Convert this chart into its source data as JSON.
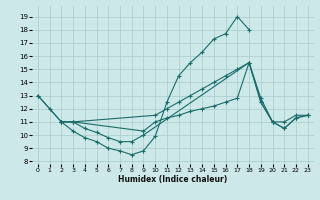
{
  "xlabel": "Humidex (Indice chaleur)",
  "bg_color": "#cce8e8",
  "grid_color": "#aacccc",
  "line_color": "#1a6b6b",
  "xlim": [
    -0.5,
    23.5
  ],
  "ylim": [
    7.8,
    19.8
  ],
  "yticks": [
    8,
    9,
    10,
    11,
    12,
    13,
    14,
    15,
    16,
    17,
    18,
    19
  ],
  "xticks": [
    0,
    1,
    2,
    3,
    4,
    5,
    6,
    7,
    8,
    9,
    10,
    11,
    12,
    13,
    14,
    15,
    16,
    17,
    18,
    19,
    20,
    21,
    22,
    23
  ],
  "lines": [
    {
      "x": [
        0,
        1,
        2,
        3,
        4,
        5,
        6,
        7,
        8,
        9,
        10,
        11,
        12,
        13,
        14,
        15,
        16,
        17,
        18
      ],
      "y": [
        13,
        12,
        11,
        10.3,
        9.8,
        9.5,
        9.0,
        8.8,
        8.5,
        8.8,
        9.9,
        12.5,
        14.5,
        15.5,
        16.3,
        17.3,
        17.7,
        19.0,
        18.0
      ]
    },
    {
      "x": [
        0,
        2,
        3,
        10,
        11,
        12,
        13,
        14,
        15,
        16,
        17,
        18,
        19,
        20,
        21,
        22,
        23
      ],
      "y": [
        13,
        11,
        11,
        11.5,
        12.0,
        12.5,
        13.0,
        13.5,
        14.0,
        14.5,
        15.0,
        15.5,
        12.8,
        11.0,
        11.0,
        11.5,
        11.5
      ]
    },
    {
      "x": [
        2,
        3,
        9,
        10,
        11,
        12,
        13,
        14,
        15,
        16,
        17,
        18,
        19,
        20,
        21,
        22,
        23
      ],
      "y": [
        11,
        11,
        10.3,
        11.0,
        11.3,
        11.5,
        11.8,
        12.0,
        12.2,
        12.5,
        12.8,
        15.5,
        12.5,
        11.0,
        10.5,
        11.3,
        11.5
      ]
    },
    {
      "x": [
        2,
        3,
        4,
        5,
        6,
        7,
        8,
        9,
        18,
        19,
        20,
        21,
        22,
        23
      ],
      "y": [
        11,
        11,
        10.5,
        10.2,
        9.8,
        9.5,
        9.5,
        10.0,
        15.5,
        12.5,
        11.0,
        10.5,
        11.3,
        11.5
      ]
    }
  ]
}
